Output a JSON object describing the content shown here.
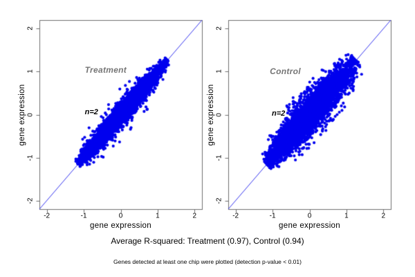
{
  "caption": "Average R-squared: Treatment (0.97), Control (0.94)",
  "footnote": "Genes detected at least one chip were plotted (detection p-value < 0.01)",
  "colors": {
    "point": "#0000ee",
    "identity_line": "#3333ee",
    "box": "#6e6e6e",
    "tick_text": "#000000",
    "panel_label": "#757575",
    "annotation": "#000000",
    "background": "#ffffff"
  },
  "chart_data": [
    {
      "type": "scatter",
      "panel_label": "Treatment",
      "annotation": "n=2",
      "xlabel": "gene expression",
      "ylabel": "gene expression",
      "xlim": [
        -2.2,
        2.2
      ],
      "ylim": [
        -2.2,
        2.2
      ],
      "xticks": [
        -2,
        -1,
        0,
        1,
        2
      ],
      "yticks": [
        2,
        1,
        0,
        -1,
        -2
      ],
      "r_squared": 0.97,
      "identity_line": true,
      "grid": false,
      "panel_label_pos": [
        -0.405,
        1.035
      ],
      "annotation_pos": [
        -0.79,
        0.06
      ],
      "cloud": {
        "seed": 7,
        "n": 4500,
        "center_sd": 0.66,
        "min": -1.16,
        "max": 1.27,
        "spread_base": 0.012,
        "spread_amp": 0.085,
        "outlier_rate": 0.01,
        "outlier_mag": 0.45
      }
    },
    {
      "type": "scatter",
      "panel_label": "Control",
      "annotation": "n=2",
      "xlabel": "gene expression",
      "ylabel": "gene expression",
      "xlim": [
        -2.2,
        2.2
      ],
      "ylim": [
        -2.2,
        2.2
      ],
      "xticks": [
        -2,
        -1,
        0,
        1,
        2
      ],
      "yticks": [
        2,
        1,
        0,
        -1,
        -2
      ],
      "r_squared": 0.94,
      "identity_line": true,
      "grid": false,
      "panel_label_pos": [
        -0.655,
        1.005
      ],
      "annotation_pos": [
        -0.84,
        0.02
      ],
      "cloud": {
        "seed": 11,
        "n": 4500,
        "center_sd": 0.66,
        "min": -1.16,
        "max": 1.27,
        "spread_base": 0.015,
        "spread_amp": 0.15,
        "outlier_rate": 0.05,
        "outlier_mag": 0.6
      }
    }
  ]
}
